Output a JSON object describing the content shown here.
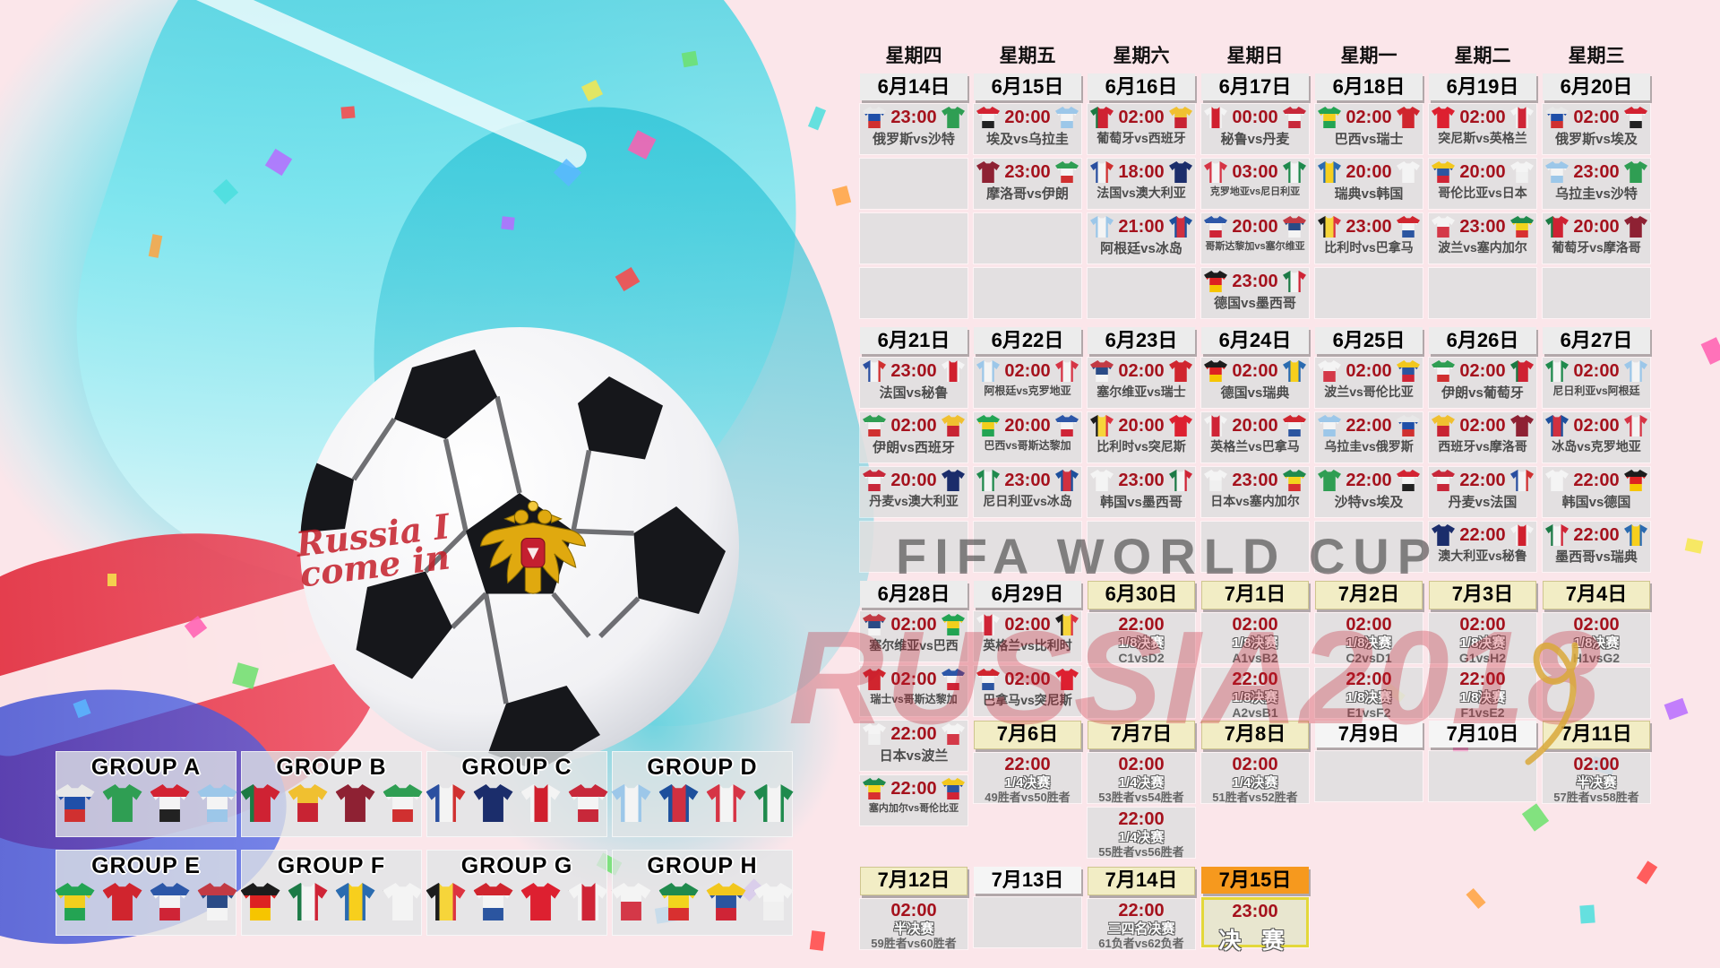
{
  "watermark": {
    "line1": "FIFA WORLD CUP",
    "line2": "RUSSIA2018"
  },
  "ball_graffiti": "Russia I come in",
  "colors": {
    "time_red": "#a5121d",
    "header_bg": "#ececec",
    "ko_header_bg": "#f2edc5",
    "rest_header_bg": "#f5f5f5",
    "final_header_bg": "#f6991e",
    "cell_bg": "#dfdfdf",
    "final_cell_border": "#e3d83a",
    "watermark_red": "#c81e2d",
    "splash_teal": "#2cc3d6"
  },
  "weekday_labels": [
    "星期四",
    "星期五",
    "星期六",
    "星期日",
    "星期一",
    "星期二",
    "星期三"
  ],
  "team_jerseys": {
    "俄罗斯": {
      "d": "h",
      "c": [
        "#e8e8e8",
        "#1f4fa8",
        "#d03030"
      ]
    },
    "沙特": {
      "d": "h",
      "c": [
        "#2f9e53"
      ]
    },
    "埃及": {
      "d": "h",
      "c": [
        "#d32332",
        "#f4f4f4",
        "#222222"
      ]
    },
    "乌拉圭": {
      "d": "h",
      "c": [
        "#9cc7e9",
        "#f4f4f4",
        "#9cc7e9"
      ]
    },
    "葡萄牙": {
      "d": "v",
      "c": [
        "#1b7a43",
        "#cf2233",
        "#cf2233"
      ]
    },
    "西班牙": {
      "d": "h",
      "c": [
        "#f0c030",
        "#c82333"
      ]
    },
    "摩洛哥": {
      "d": "h",
      "c": [
        "#8e2133"
      ]
    },
    "伊朗": {
      "d": "h",
      "c": [
        "#2f9e53",
        "#f4f4f4",
        "#d03030"
      ]
    },
    "法国": {
      "d": "v",
      "c": [
        "#2a4fa0",
        "#f4f4f4",
        "#d03030"
      ]
    },
    "澳大利亚": {
      "d": "h",
      "c": [
        "#1b2d6b"
      ]
    },
    "秘鲁": {
      "d": "v",
      "c": [
        "#f4f4f4",
        "#d0202e",
        "#f4f4f4"
      ]
    },
    "丹麦": {
      "d": "h",
      "c": [
        "#c8283a",
        "#f4f4f4",
        "#c8283a"
      ]
    },
    "阿根廷": {
      "d": "v",
      "c": [
        "#9cc7e9",
        "#f4f4f4",
        "#9cc7e9"
      ]
    },
    "冰岛": {
      "d": "v",
      "c": [
        "#1d4f9c",
        "#d03040",
        "#1d4f9c"
      ]
    },
    "克罗地亚": {
      "d": "v",
      "c": [
        "#d63445",
        "#f4f4f4",
        "#d63445"
      ]
    },
    "尼日利亚": {
      "d": "v",
      "c": [
        "#1f8a4d",
        "#f4f4f4",
        "#1f8a4d"
      ]
    },
    "巴西": {
      "d": "h",
      "c": [
        "#23a453",
        "#f2cf1d",
        "#23a453"
      ]
    },
    "瑞士": {
      "d": "h",
      "c": [
        "#d0252e"
      ]
    },
    "哥斯达黎加": {
      "d": "h",
      "c": [
        "#2c57a8",
        "#f4f4f4",
        "#cf2436"
      ]
    },
    "塞尔维亚": {
      "d": "h",
      "c": [
        "#c23a44",
        "#2a4b86",
        "#f4f4f4"
      ]
    },
    "德国": {
      "d": "h",
      "c": [
        "#1c1c1c",
        "#dd2222",
        "#f6c500"
      ]
    },
    "墨西哥": {
      "d": "v",
      "c": [
        "#1c7a46",
        "#f4f4f4",
        "#cf2436"
      ]
    },
    "瑞典": {
      "d": "v",
      "c": [
        "#2a6bb0",
        "#f7cf1d",
        "#2a6bb0"
      ]
    },
    "韩国": {
      "d": "h",
      "c": [
        "#f4f4f4"
      ]
    },
    "比利时": {
      "d": "v",
      "c": [
        "#1c1c1c",
        "#f6d53a",
        "#dd3340"
      ]
    },
    "巴拿马": {
      "d": "h",
      "c": [
        "#d0252e",
        "#f4f4f4",
        "#2b55a0"
      ]
    },
    "突尼斯": {
      "d": "h",
      "c": [
        "#dd2030"
      ]
    },
    "英格兰": {
      "d": "v",
      "c": [
        "#f4f4f4",
        "#cf2436",
        "#f4f4f4"
      ]
    },
    "波兰": {
      "d": "h",
      "c": [
        "#f4f4f4",
        "#d43848"
      ]
    },
    "塞内加尔": {
      "d": "h",
      "c": [
        "#1f8a4d",
        "#f2d41d",
        "#d83030"
      ]
    },
    "哥伦比亚": {
      "d": "h",
      "c": [
        "#f2c71d",
        "#2b55a0",
        "#cf2436"
      ]
    },
    "日本": {
      "d": "h",
      "c": [
        "#f4f4f4",
        "#f0f0f0"
      ]
    }
  },
  "groups": [
    {
      "name": "GROUP A",
      "teams": [
        "俄罗斯",
        "沙特",
        "埃及",
        "乌拉圭"
      ]
    },
    {
      "name": "GROUP B",
      "teams": [
        "葡萄牙",
        "西班牙",
        "摩洛哥",
        "伊朗"
      ]
    },
    {
      "name": "GROUP C",
      "teams": [
        "法国",
        "澳大利亚",
        "秘鲁",
        "丹麦"
      ]
    },
    {
      "name": "GROUP D",
      "teams": [
        "阿根廷",
        "冰岛",
        "克罗地亚",
        "尼日利亚"
      ]
    },
    {
      "name": "GROUP E",
      "teams": [
        "巴西",
        "瑞士",
        "哥斯达黎加",
        "塞尔维亚"
      ]
    },
    {
      "name": "GROUP F",
      "teams": [
        "德国",
        "墨西哥",
        "瑞典",
        "韩国"
      ]
    },
    {
      "name": "GROUP G",
      "teams": [
        "比利时",
        "巴拿马",
        "突尼斯",
        "英格兰"
      ]
    },
    {
      "name": "GROUP H",
      "teams": [
        "波兰",
        "塞内加尔",
        "哥伦比亚",
        "日本"
      ]
    }
  ],
  "weeks": [
    {
      "columns": [
        {
          "date": "6月14日",
          "style": "group",
          "cells": [
            {
              "t": "23:00",
              "m": "俄罗斯vs沙特"
            },
            {
              "empty": true
            },
            {
              "empty": true
            },
            {
              "empty": true
            }
          ]
        },
        {
          "date": "6月15日",
          "style": "group",
          "cells": [
            {
              "t": "20:00",
              "m": "埃及vs乌拉圭"
            },
            {
              "t": "23:00",
              "m": "摩洛哥vs伊朗"
            },
            {
              "empty": true
            },
            {
              "empty": true
            }
          ]
        },
        {
          "date": "6月16日",
          "style": "group",
          "cells": [
            {
              "t": "02:00",
              "m": "葡萄牙vs西班牙"
            },
            {
              "t": "18:00",
              "m": "法国vs澳大利亚"
            },
            {
              "t": "21:00",
              "m": "阿根廷vs冰岛"
            },
            {
              "empty": true
            }
          ]
        },
        {
          "date": "6月17日",
          "style": "group",
          "cells": [
            {
              "t": "00:00",
              "m": "秘鲁vs丹麦"
            },
            {
              "t": "03:00",
              "m": "克罗地亚vs尼日利亚"
            },
            {
              "t": "20:00",
              "m": "哥斯达黎加vs塞尔维亚"
            },
            {
              "t": "23:00",
              "m": "德国vs墨西哥"
            }
          ]
        },
        {
          "date": "6月18日",
          "style": "group",
          "cells": [
            {
              "t": "02:00",
              "m": "巴西vs瑞士"
            },
            {
              "t": "20:00",
              "m": "瑞典vs韩国"
            },
            {
              "t": "23:00",
              "m": "比利时vs巴拿马"
            },
            {
              "empty": true
            }
          ]
        },
        {
          "date": "6月19日",
          "style": "group",
          "cells": [
            {
              "t": "02:00",
              "m": "突尼斯vs英格兰"
            },
            {
              "t": "20:00",
              "m": "哥伦比亚vs日本"
            },
            {
              "t": "23:00",
              "m": "波兰vs塞内加尔"
            },
            {
              "empty": true
            }
          ]
        },
        {
          "date": "6月20日",
          "style": "group",
          "cells": [
            {
              "t": "02:00",
              "m": "俄罗斯vs埃及"
            },
            {
              "t": "23:00",
              "m": "乌拉圭vs沙特"
            },
            {
              "t": "20:00",
              "m": "葡萄牙vs摩洛哥"
            },
            {
              "empty": true
            }
          ]
        }
      ]
    },
    {
      "columns": [
        {
          "date": "6月21日",
          "style": "group",
          "cells": [
            {
              "t": "23:00",
              "m": "法国vs秘鲁"
            },
            {
              "t": "02:00",
              "m": "伊朗vs西班牙"
            },
            {
              "t": "20:00",
              "m": "丹麦vs澳大利亚"
            },
            {
              "empty": true
            }
          ]
        },
        {
          "date": "6月22日",
          "style": "group",
          "cells": [
            {
              "t": "02:00",
              "m": "阿根廷vs克罗地亚"
            },
            {
              "t": "20:00",
              "m": "巴西vs哥斯达黎加"
            },
            {
              "t": "23:00",
              "m": "尼日利亚vs冰岛"
            },
            {
              "empty": true
            }
          ]
        },
        {
          "date": "6月23日",
          "style": "group",
          "cells": [
            {
              "t": "02:00",
              "m": "塞尔维亚vs瑞士"
            },
            {
              "t": "20:00",
              "m": "比利时vs突尼斯"
            },
            {
              "t": "23:00",
              "m": "韩国vs墨西哥"
            },
            {
              "empty": true
            }
          ]
        },
        {
          "date": "6月24日",
          "style": "group",
          "cells": [
            {
              "t": "02:00",
              "m": "德国vs瑞典"
            },
            {
              "t": "20:00",
              "m": "英格兰vs巴拿马"
            },
            {
              "t": "23:00",
              "m": "日本vs塞内加尔"
            },
            {
              "empty": true
            }
          ]
        },
        {
          "date": "6月25日",
          "style": "group",
          "cells": [
            {
              "t": "02:00",
              "m": "波兰vs哥伦比亚"
            },
            {
              "t": "22:00",
              "m": "乌拉圭vs俄罗斯"
            },
            {
              "t": "22:00",
              "m": "沙特vs埃及"
            },
            {
              "empty": true
            }
          ]
        },
        {
          "date": "6月26日",
          "style": "group",
          "cells": [
            {
              "t": "02:00",
              "m": "伊朗vs葡萄牙"
            },
            {
              "t": "02:00",
              "m": "西班牙vs摩洛哥"
            },
            {
              "t": "22:00",
              "m": "丹麦vs法国"
            },
            {
              "t": "22:00",
              "m": "澳大利亚vs秘鲁"
            }
          ]
        },
        {
          "date": "6月27日",
          "style": "group",
          "cells": [
            {
              "t": "02:00",
              "m": "尼日利亚vs阿根廷"
            },
            {
              "t": "02:00",
              "m": "冰岛vs克罗地亚"
            },
            {
              "t": "22:00",
              "m": "韩国vs德国"
            },
            {
              "t": "22:00",
              "m": "墨西哥vs瑞典"
            }
          ]
        }
      ]
    },
    {
      "fixed_height": 151,
      "columns": [
        {
          "date": "6月28日",
          "style": "group",
          "cells": [
            {
              "t": "02:00",
              "m": "塞尔维亚vs巴西"
            },
            {
              "t": "02:00",
              "m": "瑞士vs哥斯达黎加"
            },
            {
              "t": "22:00",
              "m": "日本vs波兰"
            },
            {
              "t": "22:00",
              "m": "塞内加尔vs哥伦比亚"
            }
          ]
        },
        {
          "date": "6月29日",
          "style": "group",
          "cells": [
            {
              "t": "02:00",
              "m": "英格兰vs比利时"
            },
            {
              "t": "02:00",
              "m": "巴拿马vs突尼斯"
            }
          ]
        },
        {
          "date": "6月30日",
          "style": "ko",
          "cells": [
            {
              "t": "22:00",
              "stage": "1/8决赛",
              "vs": "C1vsD2"
            },
            {
              "empty": true
            }
          ]
        },
        {
          "date": "7月1日",
          "style": "ko",
          "cells": [
            {
              "t": "02:00",
              "stage": "1/8决赛",
              "vs": "A1vsB2"
            },
            {
              "t": "22:00",
              "stage": "1/8决赛",
              "vs": "A2vsB1"
            }
          ]
        },
        {
          "date": "7月2日",
          "style": "ko",
          "cells": [
            {
              "t": "02:00",
              "stage": "1/8决赛",
              "vs": "C2vsD1"
            },
            {
              "t": "22:00",
              "stage": "1/8决赛",
              "vs": "E1vsF2"
            }
          ]
        },
        {
          "date": "7月3日",
          "style": "ko",
          "cells": [
            {
              "t": "02:00",
              "stage": "1/8决赛",
              "vs": "G1vsH2"
            },
            {
              "t": "22:00",
              "stage": "1/8决赛",
              "vs": "F1vsE2"
            }
          ]
        },
        {
          "date": "7月4日",
          "style": "ko",
          "cells": [
            {
              "t": "02:00",
              "stage": "1/8决赛",
              "vs": "H1vsG2"
            },
            {
              "empty": true
            }
          ]
        }
      ]
    },
    {
      "columns": [
        {
          "date": null,
          "cells": []
        },
        {
          "date": "7月6日",
          "style": "ko",
          "cells": [
            {
              "t": "22:00",
              "stage": "1/4决赛",
              "vs": "49胜者vs50胜者"
            }
          ]
        },
        {
          "date": "7月7日",
          "style": "ko",
          "cells": [
            {
              "t": "02:00",
              "stage": "1/4决赛",
              "vs": "53胜者vs54胜者"
            },
            {
              "t": "22:00",
              "stage": "1/4决赛",
              "vs": "55胜者vs56胜者"
            }
          ]
        },
        {
          "date": "7月8日",
          "style": "ko",
          "cells": [
            {
              "t": "02:00",
              "stage": "1/4决赛",
              "vs": "51胜者vs52胜者"
            }
          ]
        },
        {
          "date": "7月9日",
          "style": "rest",
          "cells": [
            {
              "empty": true
            }
          ]
        },
        {
          "date": "7月10日",
          "style": "rest",
          "cells": [
            {
              "empty": true
            }
          ]
        },
        {
          "date": "7月11日",
          "style": "ko",
          "cells": [
            {
              "t": "02:00",
              "stage": "半决赛",
              "vs": "57胜者vs58胜者"
            }
          ]
        }
      ]
    },
    {
      "columns": [
        {
          "date": "7月12日",
          "style": "ko",
          "cells": [
            {
              "t": "02:00",
              "stage": "半决赛",
              "vs": "59胜者vs60胜者"
            }
          ]
        },
        {
          "date": "7月13日",
          "style": "rest",
          "cells": [
            {
              "empty": true
            }
          ]
        },
        {
          "date": "7月14日",
          "style": "ko",
          "cells": [
            {
              "t": "22:00",
              "stage": "三四名决赛",
              "vs": "61负者vs62负者"
            }
          ]
        },
        {
          "date": "7月15日",
          "style": "final",
          "cells": [
            {
              "t": "23:00",
              "final": "决 赛"
            }
          ]
        }
      ]
    }
  ]
}
